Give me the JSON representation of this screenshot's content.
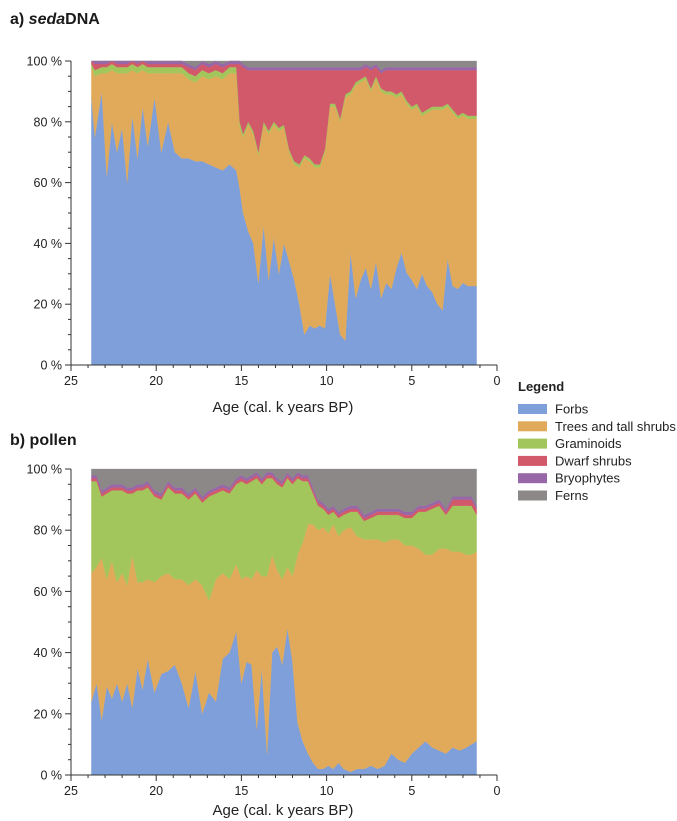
{
  "legend": {
    "title": "Legend",
    "items": [
      {
        "label": "Forbs",
        "color": "#7e9fd9"
      },
      {
        "label": "Trees and tall shrubs",
        "color": "#e1aa5a"
      },
      {
        "label": "Graminoids",
        "color": "#a3c65c"
      },
      {
        "label": "Dwarf shrubs",
        "color": "#d2596a"
      },
      {
        "label": "Bryophytes",
        "color": "#9767a8"
      },
      {
        "label": "Ferns",
        "color": "#8c8888"
      }
    ]
  },
  "chart_data": [
    {
      "type": "area",
      "stacked": true,
      "title_prefix": "a) ",
      "title_italic": "seda",
      "title_rest": "DNA",
      "xlabel": "Age (cal. k years BP)",
      "ylabel": "",
      "xlim": [
        25,
        0
      ],
      "xticks": [
        "25",
        "20",
        "15",
        "10",
        "5",
        "0"
      ],
      "ylim": [
        0,
        100
      ],
      "yticks": [
        "0 %",
        "20 %",
        "40 %",
        "60 %",
        "80 %",
        "100 %"
      ],
      "x": [
        23.8,
        23.6,
        23.2,
        22.9,
        22.6,
        22.3,
        22.0,
        21.7,
        21.4,
        21.1,
        20.8,
        20.5,
        20.1,
        19.7,
        19.3,
        18.9,
        18.5,
        18.1,
        17.7,
        17.3,
        16.9,
        16.5,
        16.1,
        15.7,
        15.3,
        15.1,
        14.9,
        14.6,
        14.3,
        14.0,
        13.7,
        13.4,
        13.1,
        12.8,
        12.5,
        12.2,
        11.9,
        11.6,
        11.3,
        11.0,
        10.7,
        10.4,
        10.1,
        9.8,
        9.5,
        9.2,
        8.9,
        8.6,
        8.3,
        8.0,
        7.7,
        7.4,
        7.1,
        6.8,
        6.5,
        6.2,
        5.9,
        5.6,
        5.3,
        5.0,
        4.7,
        4.4,
        4.1,
        3.8,
        3.5,
        3.2,
        2.9,
        2.6,
        2.3,
        2.0,
        1.7,
        1.5,
        1.2
      ],
      "series": [
        {
          "name": "Forbs",
          "values": [
            88,
            75,
            90,
            62,
            80,
            70,
            78,
            60,
            82,
            68,
            85,
            72,
            88,
            70,
            80,
            70,
            68,
            68,
            67,
            67,
            66,
            65,
            64,
            66,
            64,
            58,
            50,
            44,
            40,
            27,
            46,
            28,
            42,
            30,
            40,
            34,
            28,
            20,
            10,
            13,
            12,
            13,
            12,
            30,
            20,
            10,
            8,
            37,
            22,
            28,
            32,
            25,
            34,
            22,
            27,
            25,
            32,
            37,
            30,
            28,
            25,
            30,
            26,
            24,
            20,
            18,
            35,
            26,
            25,
            27,
            26,
            26,
            26
          ]
        },
        {
          "name": "Trees and tall shrubs",
          "values": [
            10,
            20,
            6,
            34,
            17,
            26,
            18,
            36,
            15,
            28,
            12,
            24,
            8,
            26,
            16,
            26,
            28,
            26,
            26,
            28,
            28,
            30,
            30,
            30,
            32,
            20,
            25,
            35,
            36,
            42,
            33,
            48,
            37,
            47,
            38,
            36,
            38,
            45,
            58,
            54,
            53,
            52,
            58,
            55,
            65,
            70,
            80,
            52,
            70,
            65,
            62,
            65,
            60,
            68,
            62,
            64,
            56,
            52,
            55,
            56,
            60,
            52,
            57,
            60,
            64,
            66,
            50,
            57,
            56,
            55,
            55,
            55,
            55
          ]
        },
        {
          "name": "Graminoids",
          "values": [
            1,
            2,
            2,
            2,
            2,
            2,
            2,
            2,
            2,
            2,
            2,
            2,
            2,
            2,
            2,
            2,
            2,
            2,
            2,
            2,
            2,
            2,
            2,
            2,
            2,
            2,
            1,
            1,
            1,
            1,
            1,
            1,
            1,
            1,
            1,
            1,
            1,
            1,
            1,
            1,
            1,
            1,
            1,
            1,
            1,
            1,
            1,
            1,
            1,
            1,
            1,
            1,
            1,
            1,
            1,
            1,
            1,
            1,
            1,
            1,
            1,
            1,
            1,
            1,
            1,
            1,
            1,
            1,
            1,
            1,
            1,
            1,
            1
          ]
        },
        {
          "name": "Dwarf shrubs",
          "values": [
            1,
            2,
            1,
            1,
            1,
            1,
            1,
            1,
            1,
            1,
            1,
            1,
            1,
            1,
            1,
            1,
            1,
            2,
            2,
            2,
            2,
            2,
            2,
            1,
            1,
            19,
            22,
            17,
            20,
            27,
            17,
            20,
            17,
            19,
            18,
            26,
            30,
            31,
            28,
            29,
            31,
            31,
            26,
            11,
            11,
            16,
            8,
            7,
            4,
            3,
            3,
            6,
            3,
            5,
            7,
            7,
            8,
            7,
            10,
            12,
            11,
            14,
            13,
            12,
            12,
            12,
            11,
            13,
            15,
            14,
            15,
            15,
            15
          ]
        },
        {
          "name": "Bryophytes",
          "values": [
            0,
            1,
            1,
            1,
            0,
            1,
            1,
            1,
            0,
            1,
            0,
            1,
            1,
            1,
            1,
            1,
            1,
            1,
            1,
            1,
            1,
            1,
            1,
            1,
            1,
            1,
            1,
            1,
            1,
            1,
            1,
            1,
            1,
            1,
            1,
            1,
            1,
            1,
            1,
            1,
            1,
            1,
            1,
            1,
            1,
            1,
            1,
            1,
            1,
            1,
            1,
            1,
            1,
            1,
            1,
            1,
            1,
            1,
            1,
            1,
            1,
            1,
            1,
            1,
            1,
            1,
            1,
            1,
            1,
            1,
            1,
            1,
            1
          ]
        },
        {
          "name": "Ferns",
          "values": [
            0,
            0,
            0,
            0,
            0,
            0,
            0,
            0,
            0,
            0,
            0,
            0,
            0,
            0,
            0,
            0,
            0,
            1,
            2,
            0,
            1,
            0,
            1,
            0,
            0,
            0,
            1,
            2,
            2,
            2,
            2,
            2,
            2,
            2,
            2,
            2,
            2,
            2,
            2,
            2,
            2,
            2,
            2,
            2,
            2,
            2,
            2,
            2,
            2,
            2,
            1,
            2,
            1,
            3,
            2,
            2,
            2,
            2,
            2,
            2,
            2,
            2,
            2,
            2,
            2,
            2,
            2,
            2,
            2,
            2,
            2,
            2,
            2
          ]
        }
      ]
    },
    {
      "type": "area",
      "stacked": true,
      "title_prefix": "b) ",
      "title_italic": "",
      "title_rest": "pollen",
      "xlabel": "Age (cal. k years BP)",
      "ylabel": "",
      "xlim": [
        25,
        0
      ],
      "xticks": [
        "25",
        "20",
        "15",
        "10",
        "5",
        "0"
      ],
      "ylim": [
        0,
        100
      ],
      "yticks": [
        "0 %",
        "20 %",
        "40 %",
        "60 %",
        "80 %",
        "100 %"
      ],
      "x": [
        23.8,
        23.5,
        23.2,
        22.9,
        22.6,
        22.3,
        22.0,
        21.7,
        21.4,
        21.1,
        20.8,
        20.5,
        20.1,
        19.7,
        19.3,
        18.9,
        18.5,
        18.1,
        17.7,
        17.3,
        16.9,
        16.5,
        16.1,
        15.7,
        15.3,
        15.0,
        14.7,
        14.4,
        14.1,
        13.8,
        13.5,
        13.2,
        12.9,
        12.6,
        12.3,
        12.0,
        11.7,
        11.4,
        11.1,
        10.8,
        10.5,
        10.2,
        9.9,
        9.6,
        9.3,
        9.0,
        8.6,
        8.2,
        7.8,
        7.4,
        7.0,
        6.6,
        6.2,
        5.8,
        5.4,
        5.0,
        4.6,
        4.2,
        3.8,
        3.4,
        3.0,
        2.6,
        2.2,
        1.8,
        1.5,
        1.2
      ],
      "series": [
        {
          "name": "Forbs",
          "values": [
            24,
            30,
            18,
            29,
            25,
            30,
            24,
            30,
            22,
            35,
            28,
            38,
            27,
            33,
            34,
            36,
            30,
            22,
            34,
            20,
            27,
            24,
            38,
            40,
            47,
            30,
            37,
            36,
            15,
            35,
            7,
            40,
            42,
            36,
            48,
            37,
            17,
            11,
            7,
            4,
            2,
            2,
            3,
            2,
            4,
            2,
            1,
            2,
            2,
            3,
            2,
            3,
            7,
            5,
            4,
            7,
            9,
            11,
            9,
            8,
            7,
            9,
            8,
            9,
            10,
            11
          ]
        },
        {
          "name": "Trees and tall shrubs",
          "values": [
            42,
            38,
            53,
            35,
            45,
            33,
            42,
            32,
            50,
            28,
            35,
            26,
            36,
            32,
            32,
            28,
            34,
            40,
            30,
            42,
            30,
            40,
            28,
            24,
            22,
            34,
            28,
            28,
            52,
            30,
            58,
            32,
            25,
            28,
            20,
            28,
            55,
            65,
            75,
            78,
            78,
            79,
            76,
            80,
            74,
            78,
            80,
            76,
            75,
            74,
            75,
            73,
            70,
            72,
            71,
            68,
            65,
            61,
            63,
            66,
            67,
            64,
            65,
            63,
            62,
            62
          ]
        },
        {
          "name": "Graminoids",
          "values": [
            30,
            28,
            20,
            28,
            23,
            30,
            27,
            30,
            20,
            30,
            30,
            30,
            28,
            25,
            28,
            28,
            28,
            28,
            28,
            27,
            34,
            28,
            27,
            28,
            26,
            32,
            30,
            32,
            30,
            30,
            32,
            25,
            28,
            30,
            29,
            30,
            25,
            20,
            14,
            10,
            8,
            6,
            6,
            4,
            6,
            5,
            5,
            8,
            6,
            7,
            8,
            9,
            8,
            8,
            9,
            9,
            12,
            14,
            15,
            14,
            11,
            15,
            15,
            16,
            16,
            12
          ]
        },
        {
          "name": "Dwarf shrubs",
          "values": [
            1,
            1,
            1,
            1,
            1,
            1,
            1,
            1,
            1,
            1,
            1,
            1,
            1,
            1,
            1,
            1,
            1,
            1,
            1,
            1,
            1,
            1,
            1,
            1,
            1,
            1,
            1,
            1,
            1,
            1,
            1,
            1,
            1,
            1,
            1,
            1,
            1,
            1,
            1,
            1,
            1,
            1,
            1,
            1,
            1,
            1,
            1,
            1,
            1,
            1,
            1,
            1,
            1,
            1,
            1,
            1,
            1,
            1,
            1,
            1,
            1,
            2,
            2,
            2,
            2,
            2
          ]
        },
        {
          "name": "Bryophytes",
          "values": [
            1,
            1,
            1,
            1,
            1,
            1,
            1,
            1,
            1,
            1,
            1,
            1,
            1,
            1,
            1,
            1,
            1,
            1,
            1,
            1,
            1,
            1,
            1,
            1,
            1,
            1,
            1,
            1,
            1,
            1,
            1,
            1,
            1,
            1,
            1,
            1,
            1,
            1,
            1,
            1,
            1,
            1,
            1,
            1,
            1,
            1,
            1,
            1,
            1,
            1,
            1,
            1,
            1,
            1,
            1,
            1,
            1,
            1,
            1,
            1,
            1,
            1,
            1,
            1,
            1,
            1
          ]
        },
        {
          "name": "Ferns",
          "values": [
            2,
            2,
            7,
            6,
            5,
            5,
            5,
            6,
            6,
            5,
            5,
            4,
            7,
            8,
            4,
            6,
            6,
            8,
            6,
            9,
            7,
            6,
            5,
            6,
            3,
            2,
            3,
            2,
            1,
            3,
            1,
            1,
            3,
            4,
            1,
            3,
            1,
            2,
            2,
            6,
            10,
            11,
            13,
            12,
            14,
            13,
            12,
            12,
            15,
            14,
            13,
            13,
            13,
            13,
            14,
            14,
            12,
            12,
            11,
            10,
            13,
            9,
            9,
            9,
            9,
            12
          ]
        }
      ]
    }
  ]
}
